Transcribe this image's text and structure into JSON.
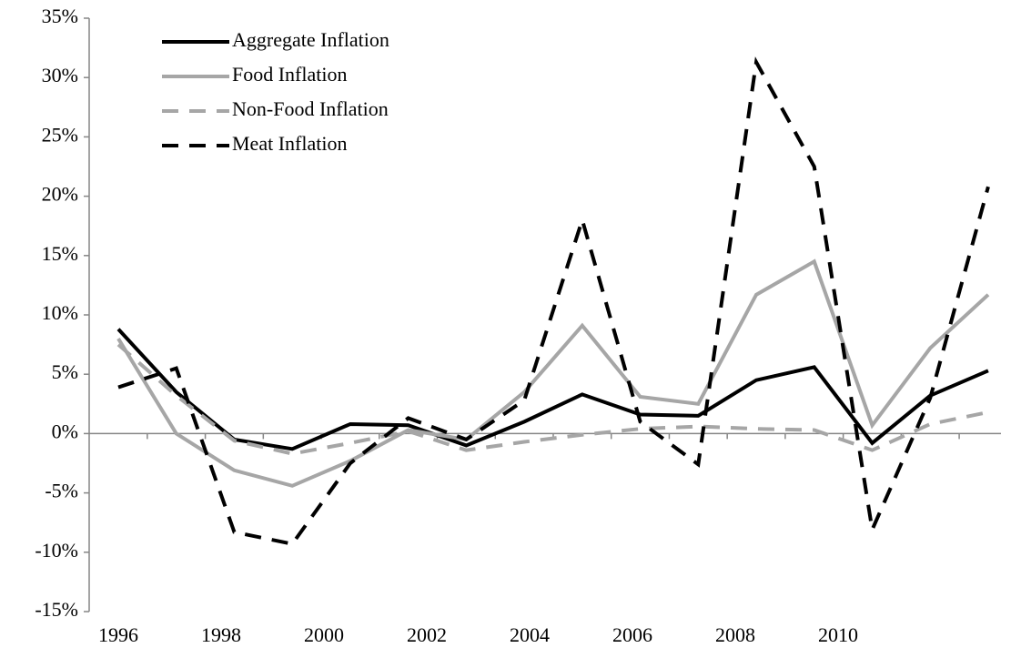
{
  "chart_data": {
    "type": "line",
    "categories": [
      "1996",
      null,
      "1998",
      null,
      "2000",
      null,
      "2002",
      null,
      "2004",
      null,
      "2006",
      null,
      "2008",
      null,
      "2010",
      null
    ],
    "series": [
      {
        "name": "Aggregate Inflation",
        "color": "#000000",
        "dash": false,
        "values": [
          8.8,
          3.5,
          -0.5,
          -1.3,
          0.8,
          0.7,
          -1.0,
          1.0,
          3.3,
          1.6,
          1.5,
          4.5,
          5.6,
          -0.8,
          3.2,
          5.3
        ]
      },
      {
        "name": "Food Inflation",
        "color": "#a6a6a6",
        "dash": false,
        "values": [
          8.0,
          0.0,
          -3.1,
          -4.4,
          -2.3,
          0.3,
          -0.5,
          3.5,
          9.1,
          3.1,
          2.5,
          11.7,
          14.5,
          0.7,
          7.2,
          11.7
        ]
      },
      {
        "name": "Non-Food Inflation",
        "color": "#a6a6a6",
        "dash": true,
        "values": [
          7.5,
          3.2,
          -0.6,
          -1.7,
          -0.8,
          0.2,
          -1.4,
          -0.7,
          -0.1,
          0.4,
          0.6,
          0.4,
          0.3,
          -1.4,
          0.8,
          1.8
        ]
      },
      {
        "name": "Meat Inflation",
        "color": "#000000",
        "dash": true,
        "values": [
          3.9,
          5.5,
          -8.3,
          -9.3,
          -2.5,
          1.3,
          -0.5,
          2.8,
          18.0,
          1.0,
          -2.6,
          31.3,
          22.5,
          -8.1,
          3.0,
          20.8
        ]
      }
    ],
    "ylim": [
      -15,
      35
    ],
    "yticks": [
      {
        "value": -15,
        "label": "-15%"
      },
      {
        "value": -10,
        "label": "-10%"
      },
      {
        "value": -5,
        "label": "-5%"
      },
      {
        "value": 0,
        "label": "0%"
      },
      {
        "value": 5,
        "label": "5%"
      },
      {
        "value": 10,
        "label": "10%"
      },
      {
        "value": 15,
        "label": "15%"
      },
      {
        "value": 20,
        "label": "20%"
      },
      {
        "value": 25,
        "label": "25%"
      },
      {
        "value": 30,
        "label": "30%"
      },
      {
        "value": 35,
        "label": "35%"
      }
    ],
    "legend": "top-left"
  }
}
